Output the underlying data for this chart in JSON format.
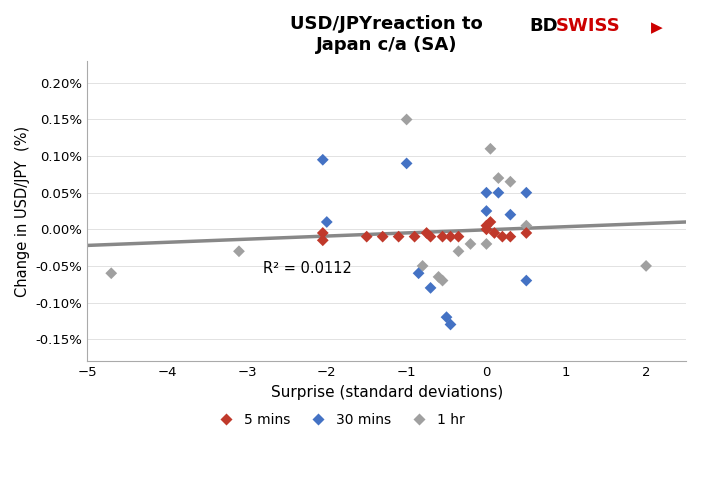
{
  "title": "USD/JPYreaction to\nJapan c/a (SA)",
  "xlabel": "Surprise (standard deviations)",
  "ylabel": "Change in USD/JPY  (%)",
  "xlim": [
    -5,
    2.5
  ],
  "ylim": [
    -0.0018,
    0.0023
  ],
  "r_squared": "R² = 0.0112",
  "trendline_x": [
    -5,
    2.5
  ],
  "trendline_y": [
    -0.00022,
    0.0001
  ],
  "scatter_5mins": [
    [
      -2.05,
      -5e-05
    ],
    [
      -2.05,
      -0.00015
    ],
    [
      -1.5,
      -0.0001
    ],
    [
      -1.3,
      -0.0001
    ],
    [
      -1.1,
      -0.0001
    ],
    [
      -0.9,
      -0.0001
    ],
    [
      -0.75,
      -5e-05
    ],
    [
      -0.7,
      -0.0001
    ],
    [
      -0.55,
      -0.0001
    ],
    [
      -0.45,
      -0.0001
    ],
    [
      -0.35,
      -0.0001
    ],
    [
      0.0,
      0.0
    ],
    [
      0.0,
      5e-05
    ],
    [
      0.05,
      0.0001
    ],
    [
      0.1,
      -5e-05
    ],
    [
      0.2,
      -0.0001
    ],
    [
      0.3,
      -0.0001
    ],
    [
      0.5,
      -5e-05
    ]
  ],
  "scatter_30mins": [
    [
      -2.05,
      0.00095
    ],
    [
      -2.0,
      0.0001
    ],
    [
      -1.0,
      0.0009
    ],
    [
      -0.85,
      -0.0006
    ],
    [
      -0.7,
      -0.0008
    ],
    [
      -0.5,
      -0.0012
    ],
    [
      -0.45,
      -0.0013
    ],
    [
      0.0,
      0.0005
    ],
    [
      0.0,
      0.00025
    ],
    [
      0.15,
      0.0005
    ],
    [
      0.3,
      0.0002
    ],
    [
      0.5,
      0.0005
    ],
    [
      0.5,
      -0.0007
    ]
  ],
  "scatter_1hr": [
    [
      -4.7,
      -0.0006
    ],
    [
      -3.1,
      -0.0003
    ],
    [
      -1.0,
      0.0015
    ],
    [
      -0.8,
      -0.0005
    ],
    [
      -0.6,
      -0.00065
    ],
    [
      -0.55,
      -0.0007
    ],
    [
      -0.35,
      -0.0003
    ],
    [
      -0.2,
      -0.0002
    ],
    [
      0.0,
      -0.0002
    ],
    [
      0.05,
      0.0011
    ],
    [
      0.15,
      0.0007
    ],
    [
      0.3,
      0.00065
    ],
    [
      0.5,
      5e-05
    ],
    [
      2.0,
      -0.0005
    ]
  ],
  "color_5mins": "#c0392b",
  "color_30mins": "#4472c4",
  "color_1hr": "#a0a0a0",
  "trendline_color": "#888888",
  "yticks": [
    -0.0015,
    -0.001,
    -0.0005,
    0.0,
    0.0005,
    0.001,
    0.0015,
    0.002
  ],
  "xticks": [
    -5,
    -4,
    -3,
    -2,
    -1,
    0,
    1,
    2
  ]
}
